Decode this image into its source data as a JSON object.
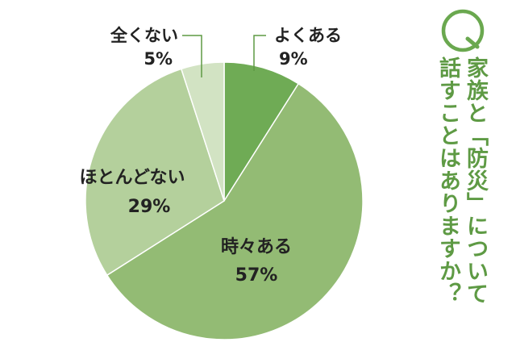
{
  "question": {
    "letter": "Q",
    "line1": "家族と「防災」について",
    "line2": "話すことはありますか？"
  },
  "colors": {
    "accent": "#6aa84f",
    "slices": [
      "#6fab55",
      "#93bb74",
      "#b4d09c",
      "#d2e3c3"
    ],
    "text": "#222222",
    "leader": "#5e9a44"
  },
  "chart_data": {
    "type": "pie",
    "start": "12 o'clock, clockwise",
    "slices": [
      {
        "label": "よくある",
        "value": 9,
        "value_label": "9%"
      },
      {
        "label": "時々ある",
        "value": 57,
        "value_label": "57%"
      },
      {
        "label": "ほとんどない",
        "value": 29,
        "value_label": "29%"
      },
      {
        "label": "全くない",
        "value": 5,
        "value_label": "5%"
      }
    ]
  }
}
